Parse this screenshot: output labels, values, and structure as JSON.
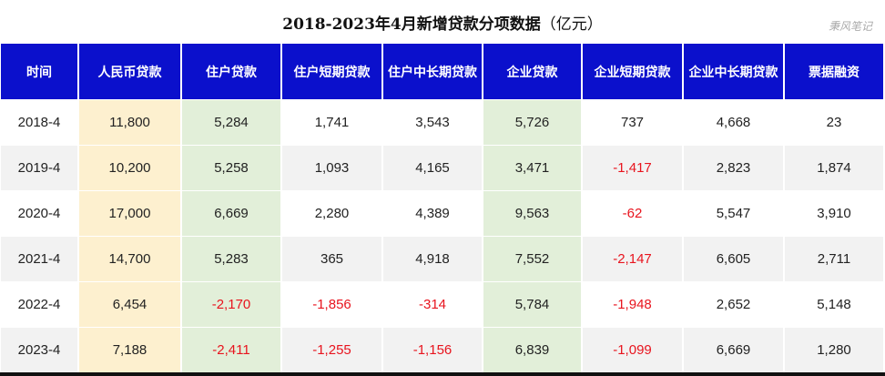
{
  "chart_data": {
    "type": "table",
    "title": "2018-2023年4月新增贷款分项数据",
    "unit": "（亿元）",
    "watermark": "秉风笔记",
    "columns": [
      "时间",
      "人民币贷款",
      "住户贷款",
      "住户短期贷款",
      "住户中长期贷款",
      "企业贷款",
      "企业短期贷款",
      "企业中长期贷款",
      "票据融资"
    ],
    "rows": [
      [
        "2018-4",
        "11,800",
        "5,284",
        "1,741",
        "3,543",
        "5,726",
        "737",
        "4,668",
        "23"
      ],
      [
        "2019-4",
        "10,200",
        "5,258",
        "1,093",
        "4,165",
        "3,471",
        "-1,417",
        "2,823",
        "1,874"
      ],
      [
        "2020-4",
        "17,000",
        "6,669",
        "2,280",
        "4,389",
        "9,563",
        "-62",
        "5,547",
        "3,910"
      ],
      [
        "2021-4",
        "14,700",
        "5,283",
        "365",
        "4,918",
        "7,552",
        "-2,147",
        "6,605",
        "2,711"
      ],
      [
        "2022-4",
        "6,454",
        "-2,170",
        "-1,856",
        "-314",
        "5,784",
        "-1,948",
        "2,652",
        "5,148"
      ],
      [
        "2023-4",
        "7,188",
        "-2,411",
        "-1,255",
        "-1,156",
        "6,839",
        "-1,099",
        "6,669",
        "1,280"
      ]
    ],
    "colors": {
      "header": "#0b10cc",
      "highlight_total": "#fdf0cf",
      "highlight_sub": "#e2efd9",
      "negative": "#e8141e",
      "alt_row": "#f2f2f2"
    }
  }
}
